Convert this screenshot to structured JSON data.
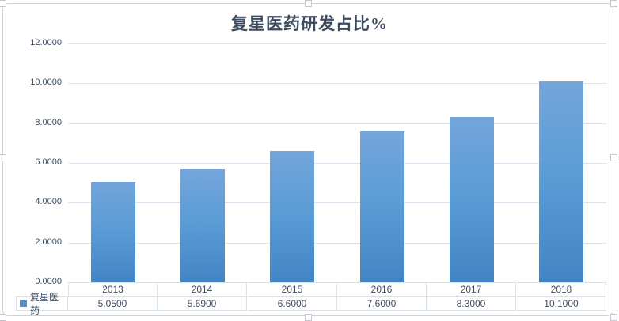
{
  "chart_data": {
    "type": "bar",
    "title": "复星医药研发占比%",
    "categories": [
      "2013",
      "2014",
      "2015",
      "2016",
      "2017",
      "2018"
    ],
    "series": [
      {
        "name": "复星医药",
        "values": [
          5.05,
          5.69,
          6.6,
          7.6,
          8.3,
          10.1
        ]
      }
    ],
    "value_labels": [
      "5.0500",
      "5.6900",
      "6.6000",
      "7.6000",
      "8.3000",
      "10.1000"
    ],
    "y_tick_labels": [
      "0.0000",
      "2.0000",
      "4.0000",
      "6.0000",
      "8.0000",
      "10.0000",
      "12.0000"
    ],
    "y_tick_values": [
      0,
      2,
      4,
      6,
      8,
      10,
      12
    ],
    "ylim": [
      0,
      12
    ],
    "xlabel": "",
    "ylabel": "",
    "grid": true,
    "legend": {
      "label": "复星医药",
      "position": "bottom-table-left",
      "marker_color": "#4E90CD"
    },
    "data_table_shown": true
  },
  "colors": {
    "bar_gradient_top": "#74A5DA",
    "bar_gradient_mid": "#5A9CD6",
    "bar_gradient_bottom": "#4384C4",
    "gridline": "#DDE4ED",
    "table_border": "#D9E1EA",
    "text": "#3E4C63",
    "title_text": "#3D4B61",
    "chart_border": "#D2D2D6",
    "background": "#FFFFFF"
  },
  "selection": {
    "handles_visible": true
  }
}
